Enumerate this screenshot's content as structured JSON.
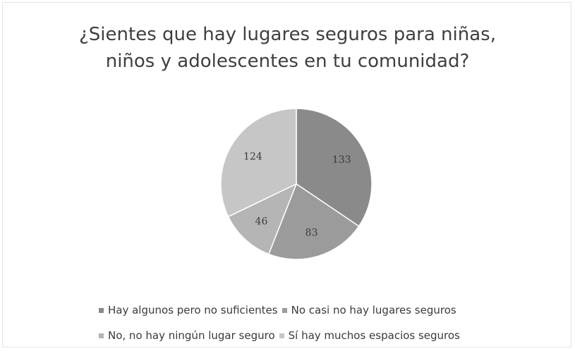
{
  "chart_data": {
    "type": "pie",
    "title": [
      "¿Sientes que hay lugares seguros para niñas,",
      "niños y adolescentes en tu comunidad?"
    ],
    "slices": [
      {
        "label": "Hay algunos pero no suficientes",
        "value": 133,
        "color": "#8a8a8a"
      },
      {
        "label": "No casi no hay lugares seguros",
        "value": 83,
        "color": "#9b9b9b"
      },
      {
        "label": "No, no hay ningún lugar seguro",
        "value": 46,
        "color": "#b5b5b5"
      },
      {
        "label": "Sí hay muchos espacios seguros",
        "value": 124,
        "color": "#c6c6c6"
      }
    ],
    "legend_position": "bottom"
  }
}
